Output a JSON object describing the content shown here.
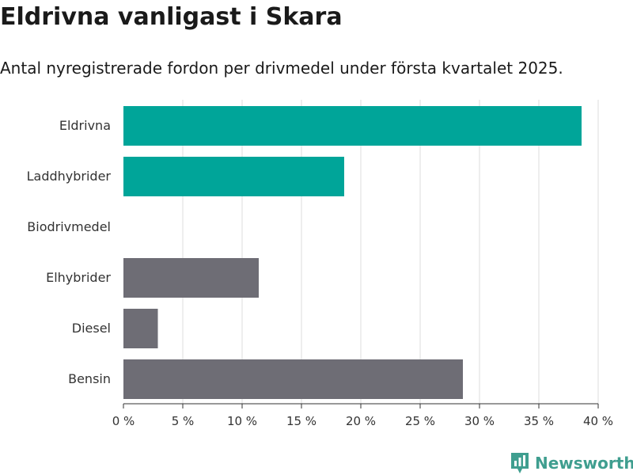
{
  "title": "Eldrivna vanligast i Skara",
  "subtitle": "Antal nyregistrerade fordon per drivmedel under första kvartalet 2025.",
  "brand": "Newsworthy",
  "colors": {
    "highlight": "#00a599",
    "muted": "#6e6d75",
    "grid": "#dcdcdc",
    "brand": "#3f9e8f"
  },
  "chart_data": {
    "type": "bar",
    "orientation": "horizontal",
    "categories": [
      "Eldrivna",
      "Laddhybrider",
      "Biodrivmedel",
      "Elhybrider",
      "Diesel",
      "Bensin"
    ],
    "values": [
      38.6,
      18.6,
      0,
      11.4,
      2.9,
      28.6
    ],
    "highlighted": [
      true,
      true,
      true,
      false,
      false,
      false
    ],
    "xlim": [
      0,
      40
    ],
    "xticks": [
      "0 %",
      "5 %",
      "10 %",
      "15 %",
      "20 %",
      "25 %",
      "30 %",
      "35 %",
      "40 %"
    ],
    "grid": true
  }
}
